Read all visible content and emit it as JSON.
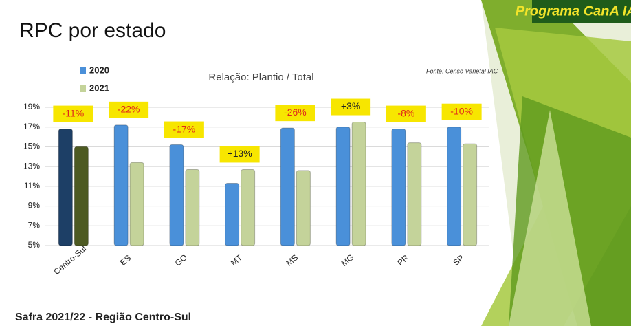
{
  "chart_data": {
    "type": "bar",
    "title": "RPC por estado",
    "subtitle": "Relação: Plantio / Total",
    "source": "Fonte: Censo Varietal IAC",
    "footer": "Safra 2021/22 - Região Centro-Sul",
    "logo": "Programa CanA IAC",
    "categories": [
      "Centro-Sul",
      "ES",
      "GO",
      "MT",
      "MS",
      "MG",
      "PR",
      "SP"
    ],
    "series": [
      {
        "name": "2020",
        "color": "#4a90d9",
        "colors": [
          "#1d3f66",
          "#4a90d9",
          "#4a90d9",
          "#4a90d9",
          "#4a90d9",
          "#4a90d9",
          "#4a90d9",
          "#4a90d9"
        ],
        "values": [
          16.8,
          17.2,
          15.2,
          11.3,
          16.9,
          17.0,
          16.8,
          17.0
        ]
      },
      {
        "name": "2021",
        "color": "#c4d39a",
        "colors": [
          "#4d5a22",
          "#c4d39a",
          "#c4d39a",
          "#c4d39a",
          "#c4d39a",
          "#c4d39a",
          "#c4d39a",
          "#c4d39a"
        ],
        "values": [
          15.0,
          13.4,
          12.7,
          12.7,
          12.6,
          17.5,
          15.4,
          15.3
        ]
      }
    ],
    "change_labels": [
      "-11%",
      "-22%",
      "-17%",
      "+13%",
      "-26%",
      "+3%",
      "-8%",
      "-10%"
    ],
    "ylim": [
      5,
      19
    ],
    "yticks": [
      {
        "value": 5,
        "label": "5%"
      },
      {
        "value": 7,
        "label": "7%"
      },
      {
        "value": 9,
        "label": "9%"
      },
      {
        "value": 11,
        "label": "11%"
      },
      {
        "value": 13,
        "label": "13%"
      },
      {
        "value": 15,
        "label": "15%"
      },
      {
        "value": 17,
        "label": "17%"
      },
      {
        "value": 19,
        "label": "19%"
      }
    ],
    "grid": true
  }
}
